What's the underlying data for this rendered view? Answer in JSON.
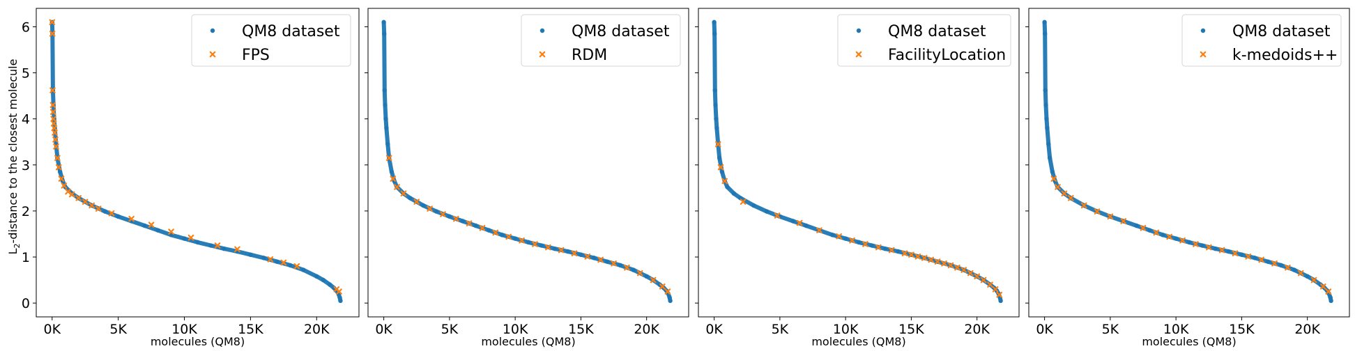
{
  "figure": {
    "ylabel_prefix": "L",
    "ylabel_sub": "2",
    "ylabel_rest": "-distance to the closest molecule"
  },
  "colors": {
    "dataset": "#1f77b4",
    "selection": "#ff7f0e"
  },
  "chart_data": [
    {
      "type": "scatter",
      "xlabel": "molecules (QM8)",
      "xlim": [
        -1200,
        23200
      ],
      "ylim": [
        -0.3,
        6.4
      ],
      "xticks": [
        0,
        5000,
        10000,
        15000,
        20000
      ],
      "xtick_labels": [
        "0K",
        "5K",
        "10K",
        "15K",
        "20K"
      ],
      "yticks": [
        0,
        1,
        2,
        3,
        4,
        5,
        6
      ],
      "ytick_labels": [
        "0",
        "1",
        "2",
        "3",
        "4",
        "5",
        "6"
      ],
      "legend_position": "top-right",
      "series": [
        {
          "name": "QM8 dataset",
          "marker": "circle",
          "x": [
            0,
            30,
            60,
            100,
            150,
            200,
            300,
            400,
            600,
            800,
            1000,
            1500,
            2000,
            3000,
            4000,
            5000,
            6000,
            7000,
            8000,
            9000,
            10000,
            11000,
            12000,
            13000,
            14000,
            15000,
            16000,
            17000,
            18000,
            19000,
            20000,
            20500,
            21000,
            21300,
            21500,
            21650,
            21750,
            21800
          ],
          "y": [
            6.1,
            5.85,
            4.62,
            4.3,
            4.0,
            3.8,
            3.45,
            3.15,
            2.85,
            2.65,
            2.52,
            2.38,
            2.28,
            2.12,
            1.99,
            1.88,
            1.78,
            1.68,
            1.58,
            1.48,
            1.4,
            1.32,
            1.25,
            1.18,
            1.12,
            1.05,
            0.98,
            0.9,
            0.82,
            0.72,
            0.58,
            0.5,
            0.4,
            0.33,
            0.27,
            0.2,
            0.12,
            0.05
          ]
        },
        {
          "name": "FPS",
          "marker": "x",
          "x": [
            0,
            20,
            40,
            60,
            80,
            100,
            130,
            160,
            200,
            250,
            300,
            400,
            500,
            700,
            900,
            1200,
            1500,
            2000,
            2500,
            3000,
            3500,
            4500,
            6000,
            7500,
            9000,
            10500,
            12500,
            14000,
            16500,
            17500,
            18500,
            21500,
            21700
          ],
          "y": [
            6.1,
            5.85,
            4.62,
            4.3,
            4.15,
            4.0,
            3.9,
            3.8,
            3.7,
            3.55,
            3.4,
            3.15,
            2.95,
            2.7,
            2.55,
            2.42,
            2.36,
            2.28,
            2.2,
            2.12,
            2.05,
            1.95,
            1.83,
            1.7,
            1.55,
            1.42,
            1.25,
            1.17,
            0.95,
            0.88,
            0.8,
            0.3,
            0.25
          ]
        }
      ]
    },
    {
      "type": "scatter",
      "xlabel": "molecules (QM8)",
      "xlim": [
        -1200,
        23200
      ],
      "ylim": [
        -0.3,
        6.4
      ],
      "xticks": [
        0,
        5000,
        10000,
        15000,
        20000
      ],
      "xtick_labels": [
        "0K",
        "5K",
        "10K",
        "15K",
        "20K"
      ],
      "yticks": [
        0,
        1,
        2,
        3,
        4,
        5,
        6
      ],
      "legend_position": "top-right",
      "series": [
        {
          "name": "QM8 dataset",
          "marker": "circle",
          "x": [
            0,
            30,
            60,
            100,
            150,
            200,
            300,
            400,
            600,
            800,
            1000,
            1500,
            2000,
            3000,
            4000,
            5000,
            6000,
            7000,
            8000,
            9000,
            10000,
            11000,
            12000,
            13000,
            14000,
            15000,
            16000,
            17000,
            18000,
            19000,
            20000,
            20500,
            21000,
            21300,
            21500,
            21650,
            21750,
            21800
          ],
          "y": [
            6.1,
            5.85,
            4.62,
            4.3,
            4.0,
            3.8,
            3.45,
            3.15,
            2.85,
            2.65,
            2.52,
            2.38,
            2.28,
            2.12,
            1.99,
            1.88,
            1.78,
            1.68,
            1.58,
            1.48,
            1.4,
            1.32,
            1.25,
            1.18,
            1.12,
            1.05,
            0.98,
            0.9,
            0.82,
            0.72,
            0.58,
            0.5,
            0.4,
            0.33,
            0.27,
            0.2,
            0.12,
            0.05
          ]
        },
        {
          "name": "RDM",
          "marker": "x",
          "x": [
            400,
            700,
            1000,
            1500,
            2500,
            3500,
            4500,
            5500,
            6500,
            7500,
            8500,
            9500,
            10500,
            11500,
            12500,
            13500,
            14500,
            15500,
            16500,
            17500,
            18500,
            19500,
            20500,
            21200,
            21600
          ],
          "y": [
            3.15,
            2.7,
            2.52,
            2.38,
            2.2,
            2.05,
            1.93,
            1.83,
            1.73,
            1.63,
            1.53,
            1.44,
            1.36,
            1.28,
            1.21,
            1.15,
            1.08,
            1.01,
            0.94,
            0.86,
            0.77,
            0.65,
            0.5,
            0.36,
            0.25
          ]
        }
      ]
    },
    {
      "type": "scatter",
      "xlabel": "molecules (QM8)",
      "xlim": [
        -1200,
        23200
      ],
      "ylim": [
        -0.3,
        6.4
      ],
      "xticks": [
        0,
        5000,
        10000,
        15000,
        20000
      ],
      "xtick_labels": [
        "0K",
        "5K",
        "10K",
        "15K",
        "20K"
      ],
      "yticks": [
        0,
        1,
        2,
        3,
        4,
        5,
        6
      ],
      "legend_position": "top-right",
      "series": [
        {
          "name": "QM8 dataset",
          "marker": "circle",
          "x": [
            0,
            30,
            60,
            100,
            150,
            200,
            300,
            400,
            600,
            800,
            1000,
            1500,
            2000,
            3000,
            4000,
            5000,
            6000,
            7000,
            8000,
            9000,
            10000,
            11000,
            12000,
            13000,
            14000,
            15000,
            16000,
            17000,
            18000,
            19000,
            20000,
            20500,
            21000,
            21300,
            21500,
            21650,
            21750,
            21800
          ],
          "y": [
            6.1,
            5.85,
            4.62,
            4.3,
            4.0,
            3.8,
            3.45,
            3.15,
            2.85,
            2.65,
            2.52,
            2.38,
            2.28,
            2.12,
            1.99,
            1.88,
            1.78,
            1.68,
            1.58,
            1.48,
            1.4,
            1.32,
            1.25,
            1.18,
            1.12,
            1.05,
            0.98,
            0.9,
            0.82,
            0.72,
            0.58,
            0.5,
            0.4,
            0.33,
            0.27,
            0.2,
            0.12,
            0.05
          ]
        },
        {
          "name": "FacilityLocation",
          "marker": "x",
          "x": [
            300,
            500,
            800,
            2200,
            4800,
            6500,
            8000,
            9500,
            10500,
            11500,
            12500,
            13500,
            14500,
            15000,
            15500,
            16000,
            16500,
            17000,
            17500,
            18000,
            18500,
            19000,
            19500,
            20000,
            20500,
            21000,
            21400,
            21700
          ],
          "y": [
            3.45,
            2.95,
            2.65,
            2.2,
            1.9,
            1.74,
            1.58,
            1.45,
            1.36,
            1.28,
            1.21,
            1.15,
            1.08,
            1.05,
            1.01,
            0.98,
            0.94,
            0.9,
            0.86,
            0.82,
            0.77,
            0.72,
            0.65,
            0.58,
            0.5,
            0.4,
            0.3,
            0.18
          ]
        }
      ]
    },
    {
      "type": "scatter",
      "xlabel": "molecules (QM8)",
      "xlim": [
        -1200,
        23200
      ],
      "ylim": [
        -0.3,
        6.4
      ],
      "xticks": [
        0,
        5000,
        10000,
        15000,
        20000
      ],
      "xtick_labels": [
        "0K",
        "5K",
        "10K",
        "15K",
        "20K"
      ],
      "yticks": [
        0,
        1,
        2,
        3,
        4,
        5,
        6
      ],
      "legend_position": "top-right",
      "series": [
        {
          "name": "QM8 dataset",
          "marker": "circle",
          "x": [
            0,
            30,
            60,
            100,
            150,
            200,
            300,
            400,
            600,
            800,
            1000,
            1500,
            2000,
            3000,
            4000,
            5000,
            6000,
            7000,
            8000,
            9000,
            10000,
            11000,
            12000,
            13000,
            14000,
            15000,
            16000,
            17000,
            18000,
            19000,
            20000,
            20500,
            21000,
            21300,
            21500,
            21650,
            21750,
            21800
          ],
          "y": [
            6.1,
            5.85,
            4.62,
            4.3,
            4.0,
            3.8,
            3.45,
            3.15,
            2.85,
            2.65,
            2.52,
            2.38,
            2.28,
            2.12,
            1.99,
            1.88,
            1.78,
            1.68,
            1.58,
            1.48,
            1.4,
            1.32,
            1.25,
            1.18,
            1.12,
            1.05,
            0.98,
            0.9,
            0.82,
            0.72,
            0.58,
            0.5,
            0.4,
            0.33,
            0.27,
            0.2,
            0.12,
            0.05
          ]
        },
        {
          "name": "k-medoids++",
          "marker": "x",
          "x": [
            700,
            1000,
            1500,
            2000,
            3000,
            4000,
            5000,
            6000,
            7500,
            8500,
            9500,
            10500,
            11500,
            12500,
            13500,
            14500,
            15500,
            16500,
            17500,
            18500,
            19500,
            20500,
            21200,
            21600
          ],
          "y": [
            2.7,
            2.52,
            2.38,
            2.28,
            2.12,
            1.99,
            1.88,
            1.78,
            1.63,
            1.53,
            1.44,
            1.36,
            1.28,
            1.21,
            1.15,
            1.08,
            1.01,
            0.94,
            0.86,
            0.77,
            0.65,
            0.5,
            0.36,
            0.25
          ]
        }
      ]
    }
  ]
}
